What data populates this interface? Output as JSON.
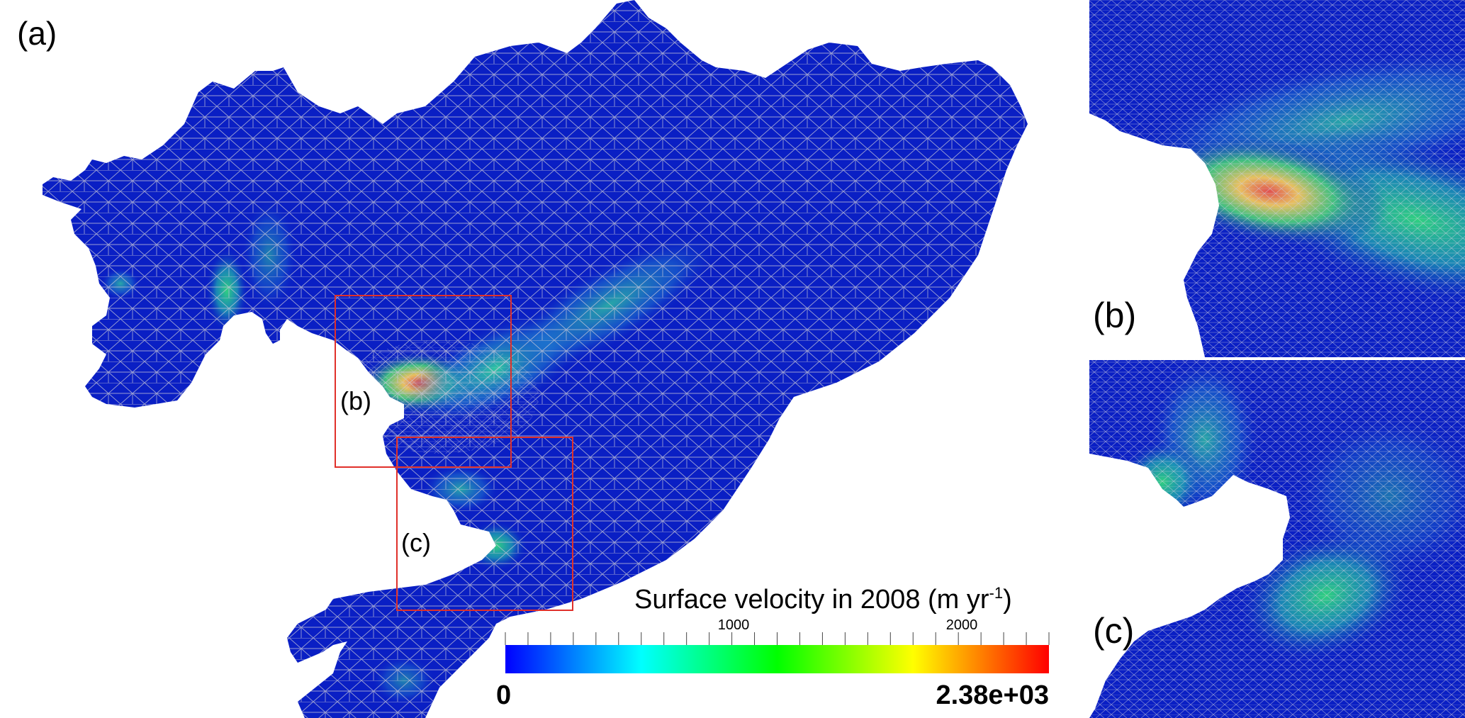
{
  "panels": {
    "a_label": "(a)",
    "b_label": "(b)",
    "c_label": "(c)",
    "box_b_label": "(b)",
    "box_c_label": "(c)"
  },
  "colorbar": {
    "title_main": "Surface velocity in 2008 (m yr",
    "title_sup": "-1",
    "title_close": ")",
    "tick_1000": "1000",
    "tick_2000": "2000",
    "min_label": "0",
    "max_label": "2.38e+03",
    "colors": [
      "#0000ff",
      "#00ffff",
      "#00ff00",
      "#ffff00",
      "#ff0000"
    ]
  },
  "colors": {
    "ice_base": "#0a1fc4",
    "mesh_line": "#c8c8d8",
    "box_outline": "#e0302a"
  }
}
